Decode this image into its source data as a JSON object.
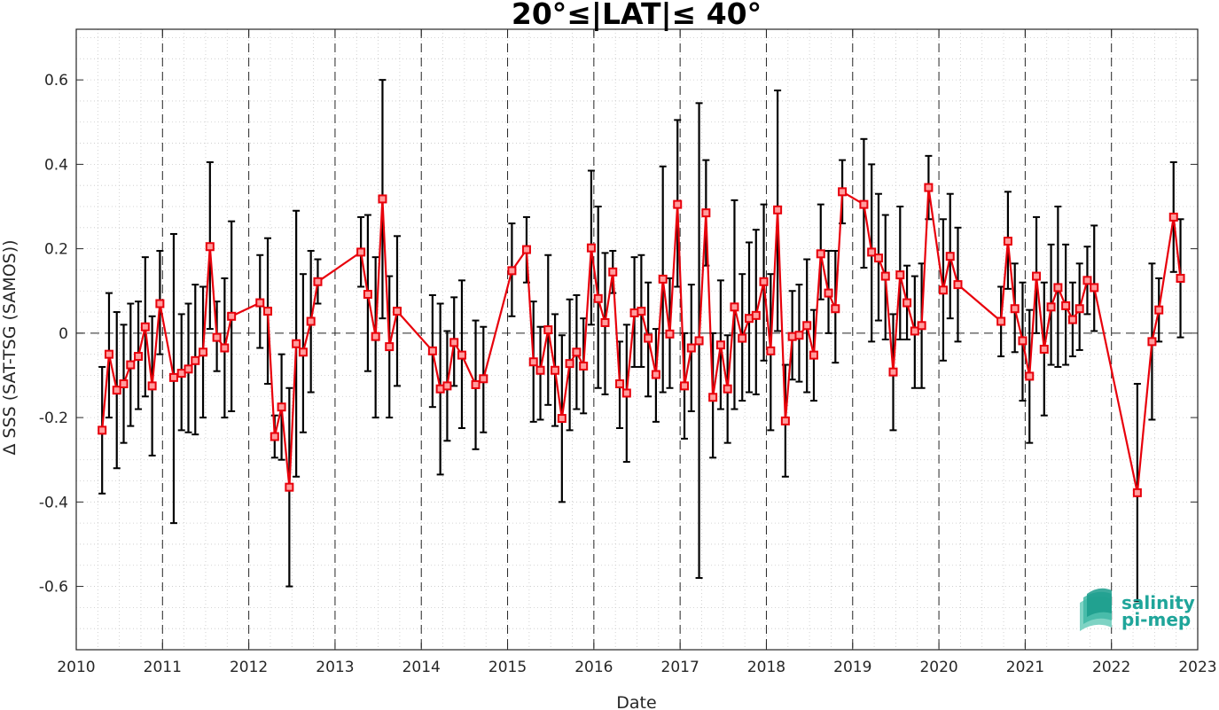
{
  "chart_data": {
    "type": "line",
    "title": "20°≤|LAT|≤ 40°",
    "xlabel": "Date",
    "ylabel": "Δ SSS (SAT-TSG (SAMOS))",
    "xlim": [
      2010,
      2023
    ],
    "ylim": [
      -0.75,
      0.72
    ],
    "x_ticks": [
      "2010",
      "2011",
      "2012",
      "2013",
      "2014",
      "2015",
      "2016",
      "2017",
      "2018",
      "2019",
      "2020",
      "2021",
      "2022",
      "2023"
    ],
    "y_ticks": [
      "-0.6",
      "-0.4",
      "-0.2",
      "0",
      "0.2",
      "0.4",
      "0.6"
    ],
    "grid": "dotted major and minor",
    "year_boundaries": "dashed vertical lines at each year",
    "zero_line": "dashed horizontal line at 0",
    "series": [
      {
        "marker": "square",
        "color": "#e8000b",
        "errorbar_color": "#000000",
        "x": [
          2010.3,
          2010.38,
          2010.47,
          2010.55,
          2010.63,
          2010.72,
          2010.8,
          2010.88,
          2010.97,
          2011.13,
          2011.22,
          2011.3,
          2011.38,
          2011.47,
          2011.55,
          2011.63,
          2011.72,
          2011.8,
          2012.13,
          2012.22,
          2012.3,
          2012.38,
          2012.47,
          2012.55,
          2012.63,
          2012.72,
          2012.8,
          2013.3,
          2013.38,
          2013.47,
          2013.55,
          2013.63,
          2013.72,
          2014.13,
          2014.22,
          2014.3,
          2014.38,
          2014.47,
          2014.63,
          2014.72,
          2015.05,
          2015.22,
          2015.3,
          2015.38,
          2015.47,
          2015.55,
          2015.63,
          2015.72,
          2015.8,
          2015.88,
          2015.97,
          2016.05,
          2016.13,
          2016.22,
          2016.3,
          2016.38,
          2016.47,
          2016.55,
          2016.63,
          2016.72,
          2016.8,
          2016.88,
          2016.97,
          2017.05,
          2017.13,
          2017.22,
          2017.3,
          2017.38,
          2017.47,
          2017.55,
          2017.63,
          2017.72,
          2017.8,
          2017.88,
          2017.97,
          2018.05,
          2018.13,
          2018.22,
          2018.3,
          2018.38,
          2018.47,
          2018.55,
          2018.63,
          2018.72,
          2018.8,
          2018.88,
          2019.13,
          2019.22,
          2019.3,
          2019.38,
          2019.47,
          2019.55,
          2019.63,
          2019.72,
          2019.8,
          2019.88,
          2020.05,
          2020.13,
          2020.22,
          2020.72,
          2020.8,
          2020.88,
          2020.97,
          2021.05,
          2021.13,
          2021.22,
          2021.3,
          2021.38,
          2021.47,
          2021.55,
          2021.63,
          2021.72,
          2021.8,
          2022.3,
          2022.47,
          2022.55,
          2022.72,
          2022.8
        ],
        "y": [
          -0.23,
          -0.05,
          -0.135,
          -0.12,
          -0.075,
          -0.055,
          0.015,
          -0.125,
          0.07,
          -0.105,
          -0.095,
          -0.085,
          -0.065,
          -0.045,
          0.205,
          -0.01,
          -0.035,
          0.04,
          0.072,
          0.052,
          -0.245,
          -0.175,
          -0.365,
          -0.025,
          -0.045,
          0.028,
          0.122,
          0.192,
          0.092,
          -0.008,
          0.318,
          -0.032,
          0.052,
          -0.042,
          -0.132,
          -0.125,
          -0.022,
          -0.052,
          -0.122,
          -0.108,
          0.148,
          0.198,
          -0.068,
          -0.088,
          0.008,
          -0.088,
          -0.202,
          -0.072,
          -0.045,
          -0.078,
          0.202,
          0.082,
          0.025,
          0.145,
          -0.12,
          -0.142,
          0.048,
          0.052,
          -0.012,
          -0.098,
          0.128,
          -0.002,
          0.305,
          -0.125,
          -0.035,
          -0.018,
          0.285,
          -0.152,
          -0.028,
          -0.132,
          0.062,
          -0.012,
          0.035,
          0.042,
          0.122,
          -0.042,
          0.292,
          -0.208,
          -0.008,
          -0.005,
          0.018,
          -0.052,
          0.188,
          0.095,
          0.058,
          0.335,
          0.305,
          0.192,
          0.178,
          0.135,
          -0.092,
          0.138,
          0.072,
          0.005,
          0.018,
          0.345,
          0.102,
          0.182,
          0.115,
          0.028,
          0.218,
          0.058,
          -0.018,
          -0.102,
          0.135,
          -0.038,
          0.062,
          0.108,
          0.065,
          0.032,
          0.058,
          0.125,
          0.108,
          -0.378,
          -0.02,
          0.055,
          0.275,
          0.13
        ],
        "err_low": [
          -0.38,
          -0.2,
          -0.32,
          -0.26,
          -0.22,
          -0.18,
          -0.15,
          -0.29,
          -0.05,
          -0.45,
          -0.23,
          -0.235,
          -0.24,
          -0.2,
          0.01,
          -0.09,
          -0.2,
          -0.185,
          -0.035,
          -0.12,
          -0.295,
          -0.3,
          -0.6,
          -0.34,
          -0.235,
          -0.14,
          0.07,
          0.11,
          -0.09,
          -0.2,
          0.035,
          -0.2,
          -0.125,
          -0.175,
          -0.335,
          -0.255,
          -0.125,
          -0.225,
          -0.275,
          -0.235,
          0.04,
          0.12,
          -0.21,
          -0.205,
          -0.17,
          -0.22,
          -0.4,
          -0.23,
          -0.18,
          -0.19,
          0.02,
          -0.13,
          -0.145,
          0.095,
          -0.225,
          -0.305,
          -0.08,
          -0.08,
          -0.15,
          -0.21,
          -0.14,
          -0.13,
          0.11,
          -0.25,
          -0.185,
          -0.58,
          0.16,
          -0.295,
          -0.18,
          -0.26,
          -0.18,
          -0.16,
          -0.14,
          -0.145,
          -0.065,
          -0.23,
          0.005,
          -0.34,
          -0.11,
          -0.115,
          -0.14,
          -0.16,
          0.08,
          0.0,
          -0.07,
          0.26,
          0.155,
          -0.02,
          0.03,
          -0.015,
          -0.23,
          -0.015,
          -0.015,
          -0.13,
          -0.13,
          0.27,
          -0.065,
          0.035,
          -0.02,
          -0.055,
          0.105,
          -0.045,
          -0.16,
          -0.26,
          0.0,
          -0.195,
          -0.075,
          -0.08,
          -0.075,
          -0.055,
          -0.04,
          0.045,
          0.005,
          -0.635,
          -0.205,
          -0.02,
          0.145,
          -0.01
        ],
        "err_high": [
          -0.08,
          0.095,
          0.05,
          0.02,
          0.07,
          0.075,
          0.18,
          0.04,
          0.195,
          0.235,
          0.045,
          0.07,
          0.115,
          0.11,
          0.405,
          0.075,
          0.13,
          0.265,
          0.185,
          0.225,
          -0.195,
          -0.05,
          -0.13,
          0.29,
          0.14,
          0.195,
          0.175,
          0.275,
          0.28,
          0.18,
          0.6,
          0.135,
          0.23,
          0.09,
          0.07,
          0.005,
          0.085,
          0.125,
          0.03,
          0.015,
          0.26,
          0.275,
          0.075,
          0.015,
          0.185,
          0.045,
          -0.005,
          0.08,
          0.09,
          0.035,
          0.385,
          0.3,
          0.19,
          0.195,
          -0.02,
          0.02,
          0.18,
          0.185,
          0.12,
          0.01,
          0.395,
          0.13,
          0.505,
          0.0,
          0.115,
          0.545,
          0.41,
          0.0,
          0.125,
          -0.005,
          0.315,
          0.14,
          0.215,
          0.245,
          0.305,
          0.14,
          0.575,
          -0.075,
          0.1,
          0.115,
          0.175,
          0.055,
          0.305,
          0.195,
          0.195,
          0.41,
          0.46,
          0.4,
          0.33,
          0.28,
          0.045,
          0.3,
          0.16,
          0.135,
          0.165,
          0.42,
          0.27,
          0.33,
          0.25,
          0.11,
          0.335,
          0.165,
          0.12,
          0.055,
          0.275,
          0.12,
          0.21,
          0.3,
          0.21,
          0.12,
          0.165,
          0.205,
          0.255,
          -0.12,
          0.165,
          0.13,
          0.405,
          0.27
        ]
      }
    ]
  },
  "logo": {
    "line1": "salinity",
    "line2": "pi-mep"
  }
}
